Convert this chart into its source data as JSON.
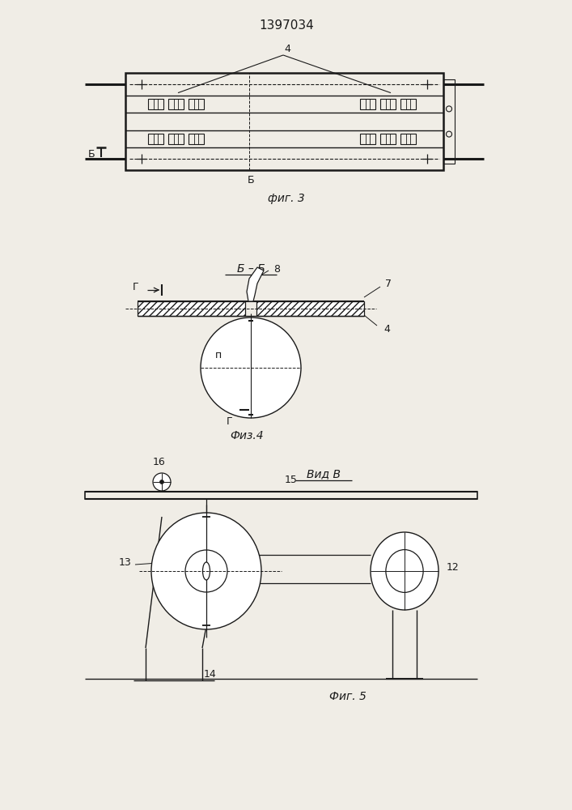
{
  "title": "1397034",
  "bg_color": "#f0ede6",
  "fig3_caption": "фиг. 3",
  "fig4_caption": "Физ.4",
  "fig5_caption": "Фиг. 5",
  "fig5_title": "Вид В",
  "fig4_title": "Б – Б",
  "line_color": "#1a1a1a"
}
